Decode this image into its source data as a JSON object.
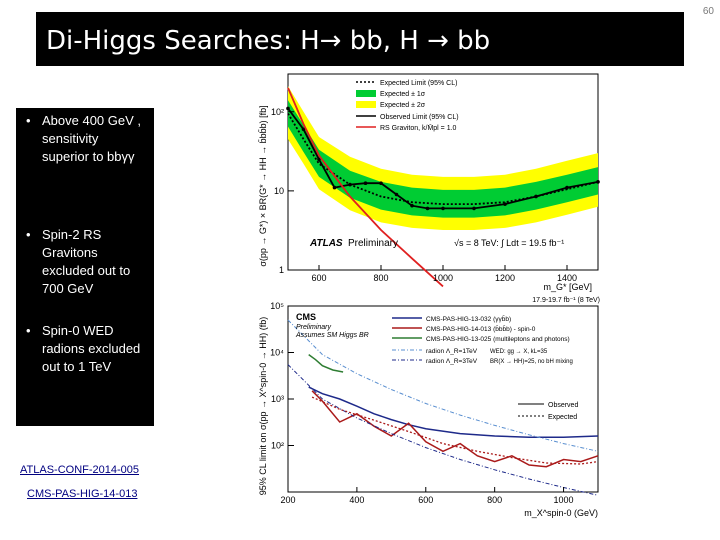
{
  "slide_number": "60",
  "title": "Di-Higgs Searches: H→ bb, H → bb",
  "bullets": [
    "Above 400 GeV , sensitivity superior to bbγγ",
    "Spin-2 RS Gravitons excluded out to 700 GeV",
    "Spin-0 WED radions excluded out to 1 TeV"
  ],
  "links": {
    "atlas": "ATLAS-CONF-2014-005",
    "cms": "CMS-PAS-HIG-14-013"
  },
  "colors": {
    "yellow_band": "#ffff00",
    "green_band": "#00cc33",
    "rs_graviton": "#e02020",
    "cms_blue": "#1e2a8a",
    "cms_red": "#aa1a1a",
    "cms_green": "#2e7d32",
    "cms_lightblue": "#5a8fd0"
  },
  "chart_data": [
    {
      "type": "line",
      "ylabel": "σ(pp → G*) × BR(G* → HH → b̄bb̄b) [fb]",
      "xlabel": "m_G* [GeV]",
      "xticks": [
        "600",
        "800",
        "1000",
        "1200",
        "1400"
      ],
      "yticks": [
        "10²",
        "10",
        "1"
      ],
      "xlim": [
        500,
        1500
      ],
      "ylim": [
        1,
        300
      ],
      "log_y": true,
      "legend": [
        "Expected Limit (95% CL)",
        "Expected ± 1σ",
        "Expected ± 2σ",
        "Observed Limit (95% CL)",
        "RS Graviton, k/M̄pl = 1.0"
      ],
      "label_atlas": "ATLAS",
      "label_prelim": "Preliminary",
      "label_lumi": "√s = 8 TeV: ∫ Ldt = 19.5 fb⁻¹",
      "series": [
        {
          "name": "Expected Limit (95% CL)",
          "x": [
            500,
            550,
            600,
            700,
            800,
            900,
            1000,
            1100,
            1200,
            1300,
            1400,
            1500
          ],
          "y": [
            95,
            45,
            22,
            12,
            8.5,
            7.2,
            6.8,
            6.8,
            7.2,
            8.5,
            10.5,
            13
          ]
        },
        {
          "name": "Expected ± 1σ upper",
          "x": [
            500,
            550,
            600,
            700,
            800,
            900,
            1000,
            1100,
            1200,
            1300,
            1400,
            1500
          ],
          "y": [
            140,
            68,
            33,
            18,
            13,
            11,
            10.3,
            10.3,
            11,
            13,
            16,
            20
          ]
        },
        {
          "name": "Expected ± 1σ lower",
          "x": [
            500,
            550,
            600,
            700,
            800,
            900,
            1000,
            1100,
            1200,
            1300,
            1400,
            1500
          ],
          "y": [
            65,
            31,
            15,
            8.2,
            5.8,
            4.9,
            4.6,
            4.6,
            4.9,
            5.8,
            7.2,
            9
          ]
        },
        {
          "name": "Expected ± 2σ upper",
          "x": [
            500,
            550,
            600,
            700,
            800,
            900,
            1000,
            1100,
            1200,
            1300,
            1400,
            1500
          ],
          "y": [
            210,
            100,
            48,
            27,
            19,
            16,
            15,
            15,
            16,
            19,
            24,
            30
          ]
        },
        {
          "name": "Expected ± 2σ lower",
          "x": [
            500,
            550,
            600,
            700,
            800,
            900,
            1000,
            1100,
            1200,
            1300,
            1400,
            1500
          ],
          "y": [
            45,
            22,
            10.5,
            5.7,
            4,
            3.4,
            3.2,
            3.2,
            3.4,
            4,
            5,
            6.3
          ]
        },
        {
          "name": "Observed Limit (95% CL)",
          "x": [
            500,
            550,
            600,
            650,
            700,
            750,
            800,
            850,
            900,
            950,
            1000,
            1100,
            1200,
            1300,
            1400,
            1500
          ],
          "y": [
            110,
            60,
            25,
            11,
            12,
            12.5,
            12.5,
            9,
            6.5,
            6,
            6,
            6,
            6.8,
            8.5,
            11,
            13
          ]
        },
        {
          "name": "RS Graviton, k/M̄pl = 1.0",
          "x": [
            500,
            550,
            600,
            700,
            800,
            900,
            1000
          ],
          "y": [
            200,
            70,
            28,
            8.5,
            3.2,
            1.4,
            0.62
          ]
        }
      ]
    },
    {
      "type": "line",
      "ylabel": "95% CL limit on σ(pp → X^spin-0 → HH) (fb)",
      "xlabel": "m_X^spin-0 (GeV)",
      "xticks": [
        "200",
        "400",
        "600",
        "800",
        "1000"
      ],
      "yticks": [
        "10⁵",
        "10⁴",
        "10³",
        "10²"
      ],
      "xlim": [
        200,
        1100
      ],
      "ylim": [
        10,
        100000
      ],
      "log_y": true,
      "corner_label": "17.9-19.7 fb⁻¹ (8 TeV)",
      "label_cms": "CMS",
      "label_prelim": "Preliminary",
      "label_assume": "Assumes SM Higgs BR",
      "legend": [
        "CMS-PAS-HIG-13-032 (γγb̄b)",
        "CMS-PAS-HIG-14-013 (b̄bb̄b) - spin-0",
        "CMS-PAS-HIG-13-025 (multileptons and photons)",
        "radion Λ_R=1TeV",
        "radion Λ_R=3TeV",
        "Observed",
        "Expected"
      ],
      "wed_note": "WED: gg → X, kL=35",
      "wed_note2": "BR(X → HH)=25, no bH mixing",
      "series": [
        {
          "name": "CMS-PAS-HIG-13-032 (γγb̄b)",
          "x": [
            260,
            300,
            350,
            400,
            450,
            500,
            550,
            600,
            700,
            800,
            900,
            1000,
            1100
          ],
          "y": [
            1800,
            1300,
            1000,
            700,
            480,
            360,
            280,
            230,
            180,
            160,
            150,
            150,
            160
          ]
        },
        {
          "name": "CMS-PAS-HIG-14-013 (b̄bb̄b) - spin-0",
          "x": [
            270,
            300,
            350,
            400,
            450,
            500,
            550,
            600,
            650,
            700,
            750,
            800,
            850,
            900,
            950,
            1000,
            1050,
            1100
          ],
          "y": [
            1500,
            900,
            320,
            480,
            260,
            160,
            300,
            120,
            75,
            110,
            60,
            45,
            60,
            38,
            35,
            50,
            45,
            60
          ]
        },
        {
          "name": "CMS-PAS-HIG-13-025 (multileptons and photons)",
          "x": [
            260,
            280,
            300,
            330,
            360
          ],
          "y": [
            9000,
            7000,
            5200,
            4200,
            3800
          ]
        },
        {
          "name": "radion Λ_R=1TeV",
          "x": [
            200,
            300,
            400,
            500,
            600,
            700,
            800,
            900,
            1000,
            1100
          ],
          "y": [
            50000,
            9000,
            3500,
            1600,
            800,
            450,
            270,
            170,
            110,
            75
          ]
        },
        {
          "name": "radion Λ_R=3TeV",
          "x": [
            200,
            300,
            400,
            500,
            600,
            700,
            800,
            900,
            1000,
            1100
          ],
          "y": [
            5500,
            1000,
            390,
            180,
            90,
            50,
            30,
            19,
            12.5,
            8.5
          ]
        },
        {
          "name": "Expected",
          "x": [
            270,
            350,
            450,
            550,
            650,
            750,
            850,
            950,
            1050,
            1100
          ],
          "y": [
            1100,
            600,
            350,
            200,
            110,
            75,
            55,
            42,
            40,
            45
          ]
        }
      ]
    }
  ]
}
